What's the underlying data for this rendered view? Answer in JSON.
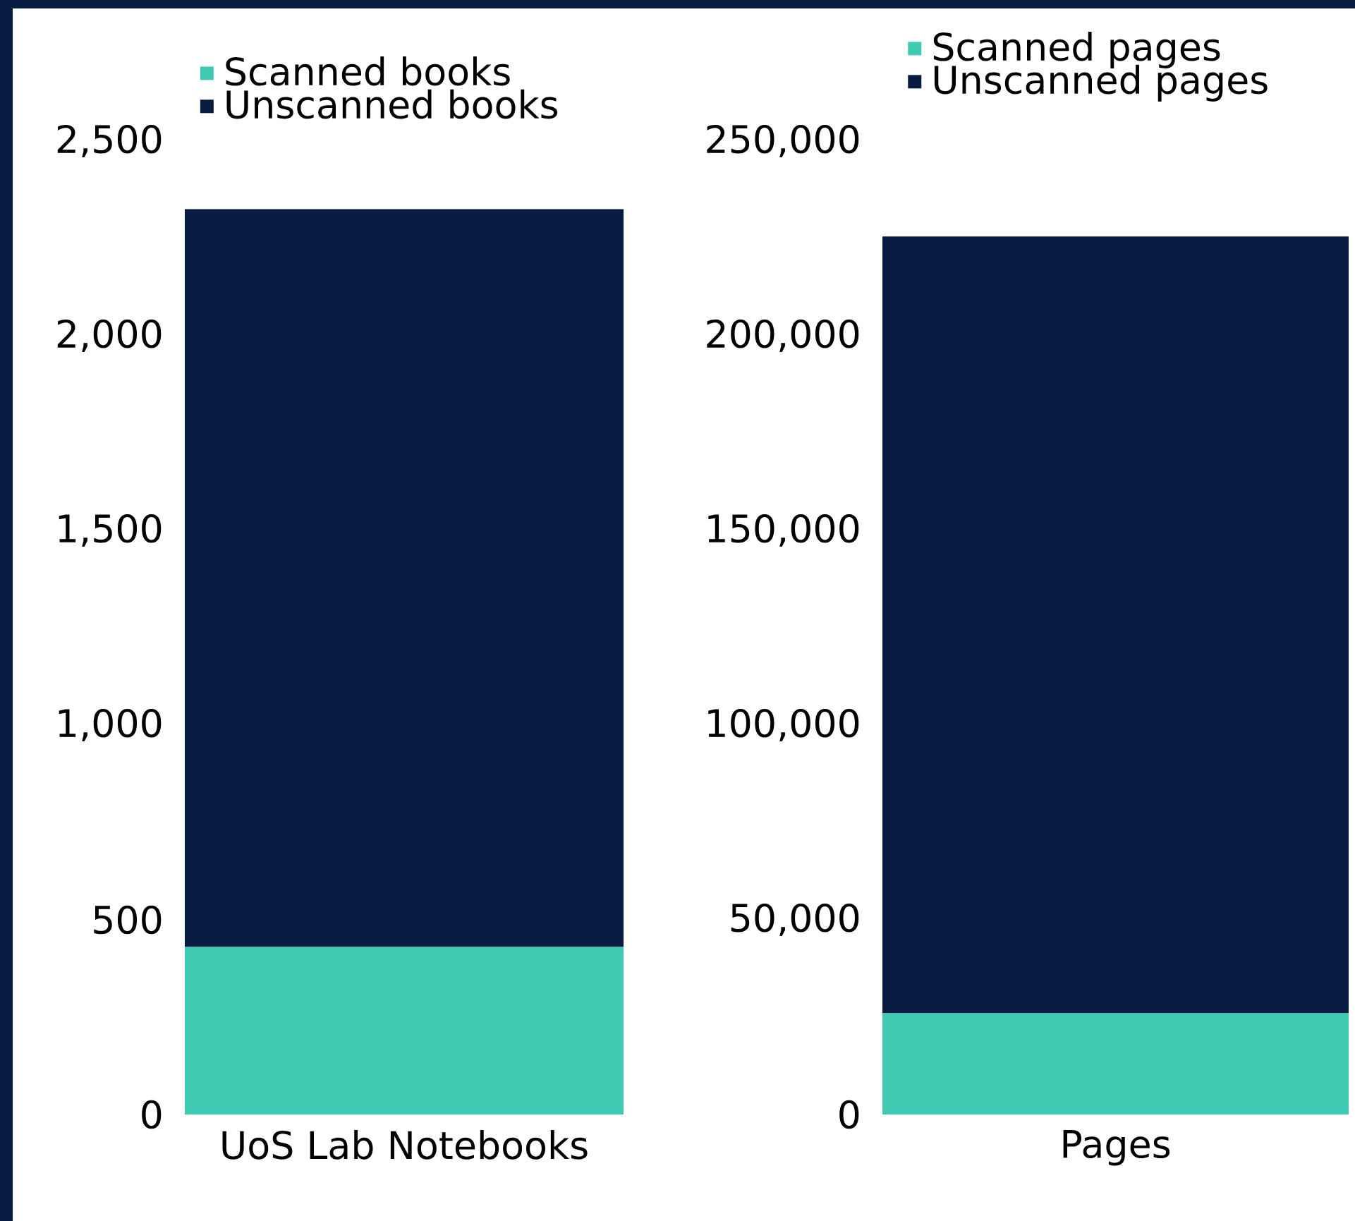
{
  "chart_data": [
    {
      "type": "bar",
      "stacked": true,
      "categories": [
        "UoS Lab Notebooks"
      ],
      "series": [
        {
          "name": "Scanned books",
          "color": "#3ecbb2",
          "values": [
            430
          ]
        },
        {
          "name": "Unscanned books",
          "color": "#081b41",
          "values": [
            1895
          ]
        }
      ],
      "ylim": [
        0,
        2500
      ],
      "yticks": [
        0,
        500,
        {
          "value": 1000,
          "label": "1,000"
        },
        {
          "value": 1500,
          "label": "1,500"
        },
        {
          "value": 2000,
          "label": "2,000"
        },
        {
          "value": 2500,
          "label": "2,500"
        }
      ],
      "grid": false,
      "legend": "top left"
    },
    {
      "type": "bar",
      "stacked": true,
      "categories": [
        "Pages"
      ],
      "series": [
        {
          "name": "Scanned pages",
          "color": "#3ecbb2",
          "values": [
            26000
          ]
        },
        {
          "name": "Unscanned pages",
          "color": "#081b41",
          "values": [
            199500
          ]
        }
      ],
      "ylim": [
        0,
        250000
      ],
      "yticks": [
        0,
        {
          "value": 50000,
          "label": "50,000"
        },
        {
          "value": 100000,
          "label": "100,000"
        },
        {
          "value": 150000,
          "label": "150,000"
        },
        {
          "value": 200000,
          "label": "200,000"
        },
        {
          "value": 250000,
          "label": "250,000"
        }
      ],
      "grid": false,
      "legend": "top left"
    }
  ]
}
